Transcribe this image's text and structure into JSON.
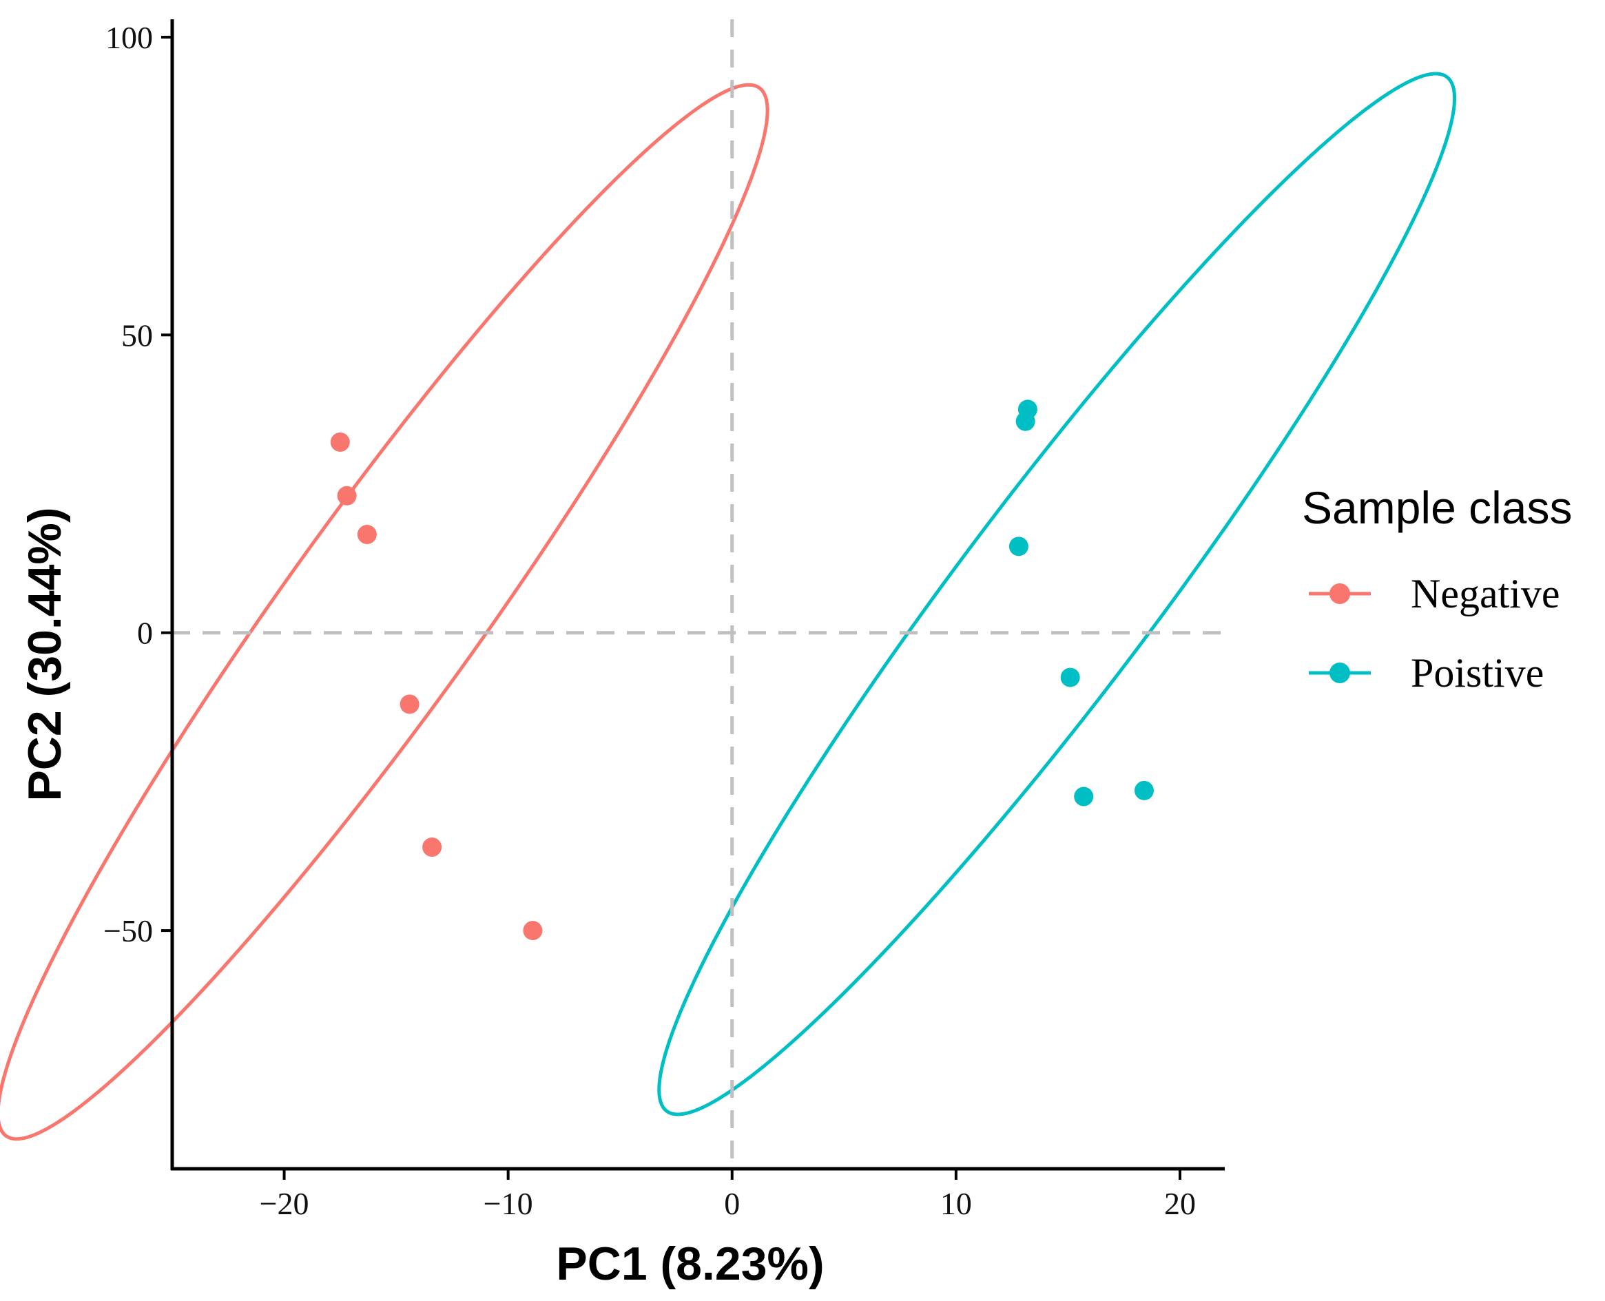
{
  "chart_data": {
    "type": "scatter",
    "title": "",
    "xlabel": "PC1 (8.23%)",
    "ylabel": "PC2 (30.44%)",
    "xlim": [
      -25,
      22
    ],
    "ylim": [
      -90,
      103
    ],
    "xticks": [
      -20,
      -10,
      0,
      10,
      20
    ],
    "xtick_labels": [
      "−20",
      "−10",
      "0",
      "10",
      "20"
    ],
    "yticks": [
      -50,
      0,
      50,
      100
    ],
    "ytick_labels": [
      "−50",
      "0",
      "50",
      "100"
    ],
    "grid": false,
    "reference_lines": {
      "x": 0,
      "y": 0,
      "style": "dashed",
      "color": "#bfbfbf"
    },
    "legend": {
      "title": "Sample class",
      "position": "right"
    },
    "series": [
      {
        "name": "Negative",
        "color": "#F8766D",
        "points": [
          {
            "x": -17.5,
            "y": 32
          },
          {
            "x": -17.2,
            "y": 23
          },
          {
            "x": -16.3,
            "y": 16.5
          },
          {
            "x": -14.4,
            "y": -12
          },
          {
            "x": -13.4,
            "y": -36
          },
          {
            "x": -8.9,
            "y": -50
          }
        ],
        "ellipse": {
          "cx": -15.6,
          "cy": 3.5,
          "rx": 5.2,
          "ry": 90.0,
          "angle_deg": -10.5
        }
      },
      {
        "name": "Poistive",
        "color": "#00BFC4",
        "points": [
          {
            "x": 13.2,
            "y": 37.5
          },
          {
            "x": 13.1,
            "y": 35.5
          },
          {
            "x": 12.8,
            "y": 14.5
          },
          {
            "x": 15.1,
            "y": -7.5
          },
          {
            "x": 15.7,
            "y": -27.5
          },
          {
            "x": 18.4,
            "y": -26.5
          }
        ],
        "ellipse": {
          "cx": 14.5,
          "cy": 6.5,
          "rx": 5.3,
          "ry": 89.0,
          "angle_deg": -11.0
        }
      }
    ]
  }
}
